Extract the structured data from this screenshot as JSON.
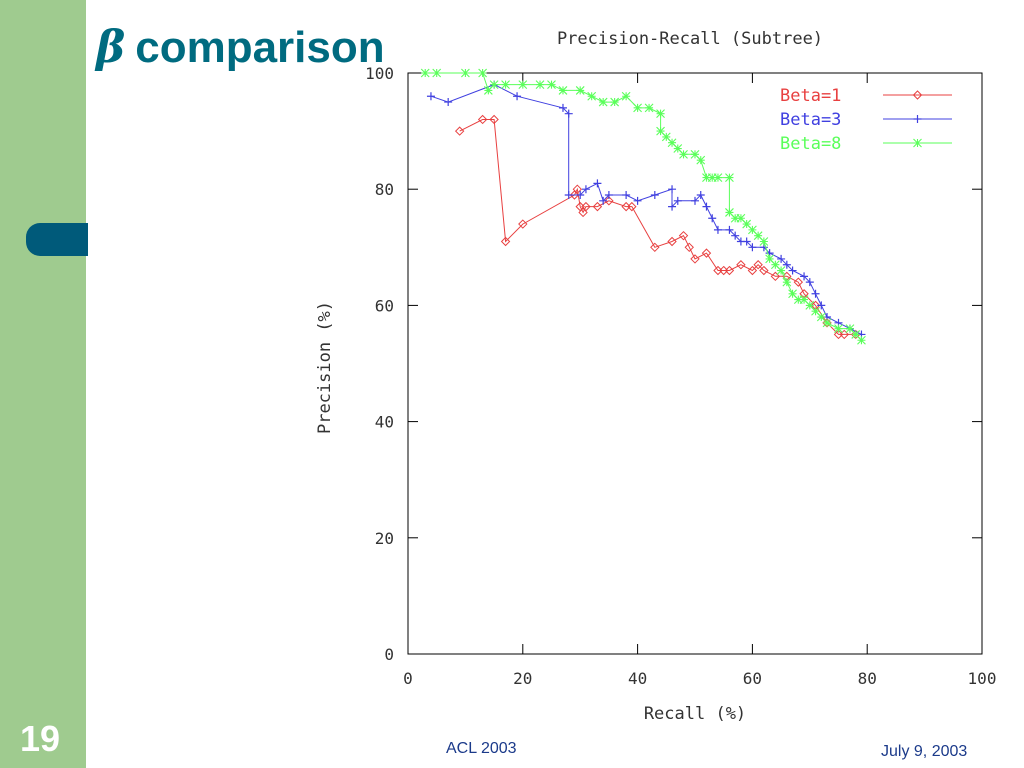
{
  "slide": {
    "title_symbol": "β",
    "title_text": "comparison",
    "number": "19",
    "footer_left": "ACL 2003",
    "footer_right": "July 9, 2003",
    "colors": {
      "sidebar": "#9fcb8f",
      "accent": "#005a7a",
      "title": "#006b80",
      "footer": "#1b3a8a"
    }
  },
  "chart_data": {
    "type": "line",
    "title": "Precision-Recall (Subtree)",
    "xlabel": "Recall (%)",
    "ylabel": "Precision (%)",
    "xlim": [
      0,
      100
    ],
    "ylim": [
      0,
      100
    ],
    "xticks": [
      0,
      20,
      40,
      60,
      80,
      100
    ],
    "yticks": [
      0,
      20,
      40,
      60,
      80,
      100
    ],
    "grid": false,
    "legend_position": "top-right",
    "series": [
      {
        "name": "Beta=1",
        "color": "#e84040",
        "marker": "diamond",
        "points": [
          [
            9,
            90
          ],
          [
            13,
            92
          ],
          [
            15,
            92
          ],
          [
            17,
            71
          ],
          [
            20,
            74
          ],
          [
            29,
            79
          ],
          [
            29.5,
            80
          ],
          [
            30,
            77
          ],
          [
            30.5,
            76
          ],
          [
            31,
            77
          ],
          [
            33,
            77
          ],
          [
            35,
            78
          ],
          [
            38,
            77
          ],
          [
            39,
            77
          ],
          [
            43,
            70
          ],
          [
            46,
            71
          ],
          [
            48,
            72
          ],
          [
            49,
            70
          ],
          [
            50,
            68
          ],
          [
            52,
            69
          ],
          [
            54,
            66
          ],
          [
            55,
            66
          ],
          [
            56,
            66
          ],
          [
            58,
            67
          ],
          [
            60,
            66
          ],
          [
            61,
            67
          ],
          [
            62,
            66
          ],
          [
            64,
            65
          ],
          [
            66,
            65
          ],
          [
            68,
            64
          ],
          [
            69,
            62
          ],
          [
            71,
            60
          ],
          [
            73,
            57
          ],
          [
            75,
            55
          ],
          [
            76,
            55
          ],
          [
            78,
            55
          ]
        ]
      },
      {
        "name": "Beta=3",
        "color": "#4040e0",
        "marker": "plus",
        "points": [
          [
            4,
            96
          ],
          [
            7,
            95
          ],
          [
            15,
            98
          ],
          [
            19,
            96
          ],
          [
            27,
            94
          ],
          [
            28,
            93
          ],
          [
            28,
            79
          ],
          [
            30,
            79
          ],
          [
            31,
            80
          ],
          [
            33,
            81
          ],
          [
            34,
            78
          ],
          [
            35,
            79
          ],
          [
            38,
            79
          ],
          [
            40,
            78
          ],
          [
            43,
            79
          ],
          [
            46,
            80
          ],
          [
            46,
            77
          ],
          [
            47,
            78
          ],
          [
            50,
            78
          ],
          [
            51,
            79
          ],
          [
            52,
            77
          ],
          [
            53,
            75
          ],
          [
            54,
            73
          ],
          [
            56,
            73
          ],
          [
            57,
            72
          ],
          [
            58,
            71
          ],
          [
            59,
            71
          ],
          [
            60,
            70
          ],
          [
            62,
            70
          ],
          [
            63,
            69
          ],
          [
            65,
            68
          ],
          [
            66,
            67
          ],
          [
            67,
            66
          ],
          [
            69,
            65
          ],
          [
            70,
            64
          ],
          [
            71,
            62
          ],
          [
            72,
            60
          ],
          [
            73,
            58
          ],
          [
            75,
            57
          ],
          [
            77,
            56
          ],
          [
            79,
            55
          ]
        ]
      },
      {
        "name": "Beta=8",
        "color": "#5aff5a",
        "marker": "star",
        "points": [
          [
            3,
            100
          ],
          [
            5,
            100
          ],
          [
            10,
            100
          ],
          [
            13,
            100
          ],
          [
            14,
            97
          ],
          [
            15,
            98
          ],
          [
            17,
            98
          ],
          [
            20,
            98
          ],
          [
            23,
            98
          ],
          [
            25,
            98
          ],
          [
            27,
            97
          ],
          [
            30,
            97
          ],
          [
            32,
            96
          ],
          [
            34,
            95
          ],
          [
            36,
            95
          ],
          [
            38,
            96
          ],
          [
            40,
            94
          ],
          [
            42,
            94
          ],
          [
            44,
            93
          ],
          [
            44,
            90
          ],
          [
            45,
            89
          ],
          [
            46,
            88
          ],
          [
            47,
            87
          ],
          [
            48,
            86
          ],
          [
            50,
            86
          ],
          [
            51,
            85
          ],
          [
            52,
            82
          ],
          [
            53,
            82
          ],
          [
            54,
            82
          ],
          [
            56,
            82
          ],
          [
            56,
            76
          ],
          [
            57,
            75
          ],
          [
            58,
            75
          ],
          [
            59,
            74
          ],
          [
            60,
            73
          ],
          [
            61,
            72
          ],
          [
            62,
            71
          ],
          [
            63,
            68
          ],
          [
            64,
            67
          ],
          [
            65,
            66
          ],
          [
            66,
            64
          ],
          [
            67,
            62
          ],
          [
            68,
            61
          ],
          [
            69,
            61
          ],
          [
            70,
            60
          ],
          [
            71,
            59
          ],
          [
            72,
            58
          ],
          [
            73,
            57
          ],
          [
            75,
            56
          ],
          [
            77,
            56
          ],
          [
            78,
            55
          ],
          [
            79,
            54
          ]
        ]
      }
    ]
  }
}
